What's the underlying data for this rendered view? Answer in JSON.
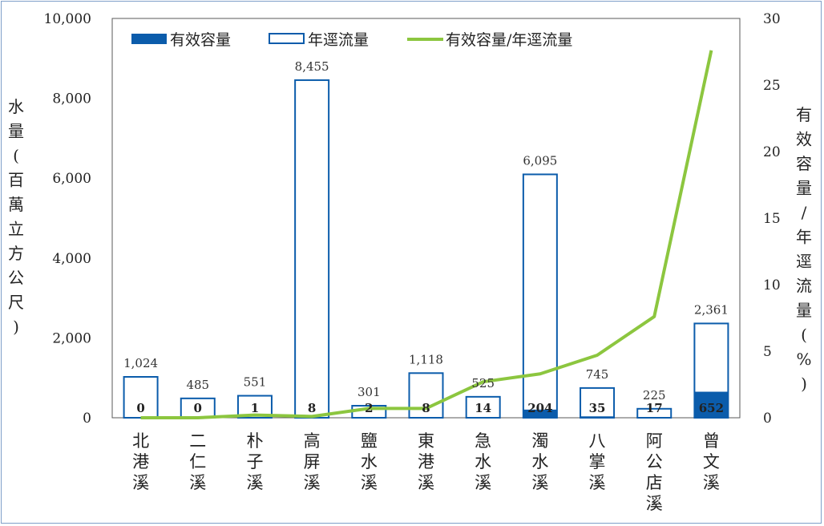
{
  "chart_data": {
    "type": "bar",
    "categories": [
      "北港溪",
      "二仁溪",
      "朴子溪",
      "高屏溪",
      "鹽水溪",
      "東港溪",
      "急水溪",
      "濁水溪",
      "八掌溪",
      "阿公店溪",
      "曾文溪"
    ],
    "series": [
      {
        "name": "有效容量",
        "type": "bar",
        "axis": "left",
        "values": [
          0,
          0,
          1,
          8,
          2,
          8,
          14,
          204,
          35,
          17,
          652
        ],
        "labels": [
          "0",
          "0",
          "1",
          "8",
          "2",
          "8",
          "14",
          "204",
          "35",
          "17",
          "652"
        ],
        "color": "#0b5cab"
      },
      {
        "name": "年逕流量",
        "type": "bar-outline",
        "axis": "left",
        "values": [
          1024,
          485,
          551,
          8455,
          301,
          1118,
          525,
          6095,
          745,
          225,
          2361
        ],
        "labels": [
          "1,024",
          "485",
          "551",
          "8,455",
          "301",
          "1,118",
          "525",
          "6,095",
          "745",
          "225",
          "2,361"
        ],
        "color": "#0b5cab"
      },
      {
        "name": "有效容量/年逕流量",
        "type": "line",
        "axis": "right",
        "values": [
          0,
          0,
          0.2,
          0.1,
          0.7,
          0.7,
          2.7,
          3.3,
          4.7,
          7.6,
          27.6
        ],
        "color": "#8cc63f"
      }
    ],
    "ylabel": "水量(百萬立方公尺)",
    "y2label": "有效容量/年逕流量(%)",
    "ylim": [
      0,
      10000
    ],
    "y2lim": [
      0,
      30
    ],
    "yticks": [
      "0",
      "2,000",
      "4,000",
      "6,000",
      "8,000",
      "10,000"
    ],
    "y2ticks": [
      "0",
      "5",
      "10",
      "15",
      "20",
      "25",
      "30"
    ],
    "legend_position": "top",
    "grid": false
  }
}
